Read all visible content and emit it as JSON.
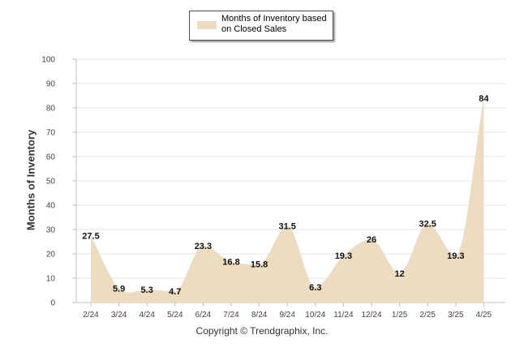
{
  "chart_data": {
    "type": "area",
    "categories": [
      "2/24",
      "3/24",
      "4/24",
      "5/24",
      "6/24",
      "7/24",
      "8/24",
      "9/24",
      "10/24",
      "11/24",
      "12/24",
      "1/25",
      "2/25",
      "3/25",
      "4/25"
    ],
    "series": [
      {
        "name": "Months of Inventory based on Closed Sales",
        "values": [
          27.5,
          5.9,
          5.3,
          4.7,
          23.3,
          16.8,
          15.8,
          31.5,
          6.3,
          19.3,
          26,
          12,
          32.5,
          19.3,
          84
        ],
        "value_labels": [
          "27.5",
          "5.9",
          "5.3",
          "4.7",
          "23.3",
          "16.8",
          "15.8",
          "31.5",
          "6.3",
          "19.3",
          "26",
          "12",
          "32.5",
          "19.3",
          "84"
        ]
      }
    ],
    "y_ticks": [
      "0",
      "10",
      "20",
      "30",
      "40",
      "50",
      "60",
      "70",
      "80",
      "90",
      "100"
    ],
    "ylim": [
      0,
      100
    ],
    "ylabel": "Months of Inventory",
    "xlabel": "",
    "grid": true,
    "legend_position": "top-center",
    "colors": {
      "fill": "#ecdcc1",
      "grid": "#e6e6e6",
      "axis": "#c0c0c0"
    }
  },
  "legend": {
    "label": "Months of Inventory based on Closed Sales"
  },
  "footer": {
    "copyright": "Copyright © Trendgraphix, Inc."
  }
}
